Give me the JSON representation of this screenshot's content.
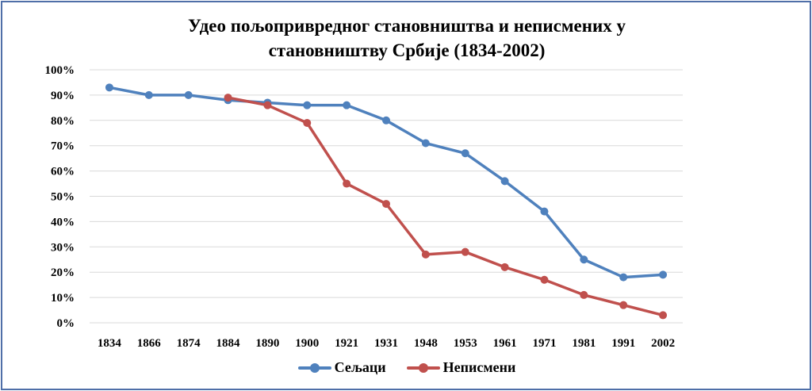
{
  "chart_data": {
    "type": "line",
    "title_lines": [
      "Удео пољопривредног становништва и неписмених у",
      "становништву Србије (1834-2002)"
    ],
    "categories": [
      "1834",
      "1866",
      "1874",
      "1884",
      "1890",
      "1900",
      "1921",
      "1931",
      "1948",
      "1953",
      "1961",
      "1971",
      "1981",
      "1991",
      "2002"
    ],
    "y_ticks": [
      "0%",
      "10%",
      "20%",
      "30%",
      "40%",
      "50%",
      "60%",
      "70%",
      "80%",
      "90%",
      "100%"
    ],
    "ylim": [
      0,
      100
    ],
    "grid": true,
    "legend_position": "bottom",
    "series": [
      {
        "name": "Сељаци",
        "color": "#4f81bd",
        "values": [
          93,
          90,
          90,
          88,
          87,
          86,
          86,
          80,
          71,
          67,
          56,
          44,
          25,
          18,
          19
        ]
      },
      {
        "name": "Неписмени",
        "color": "#c0504d",
        "values": [
          null,
          null,
          null,
          89,
          86,
          79,
          55,
          47,
          27,
          28,
          22,
          17,
          11,
          7,
          3
        ]
      }
    ]
  }
}
